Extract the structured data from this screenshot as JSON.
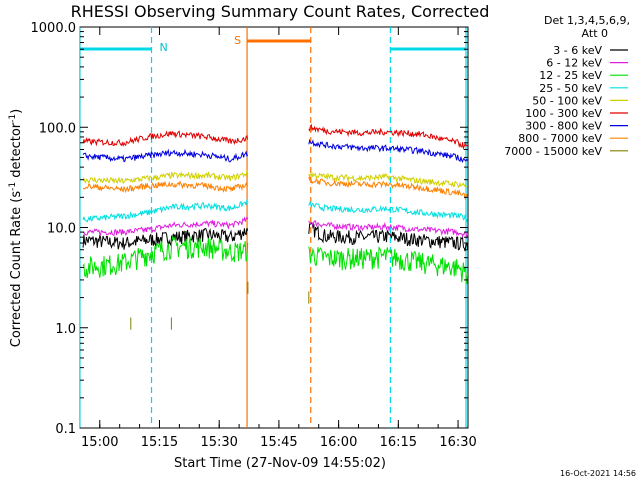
{
  "chart_data": {
    "type": "line",
    "title": "RHESSI Observing Summary Count Rates, Corrected",
    "xlabel": "Start Time (27-Nov-09 14:55:02)",
    "ylabel_main": "Corrected Count Rate (s",
    "ylabel_sup1": "-1",
    "ylabel_mid": " detector",
    "ylabel_sup2": "-1",
    "ylabel_end": ")",
    "yscale": "log",
    "ylim": [
      0.1,
      1000.0
    ],
    "xlim": [
      "14:55:02",
      "16:32:30"
    ],
    "x_ticks": [
      "15:00",
      "15:15",
      "15:30",
      "15:45",
      "16:00",
      "16:15",
      "16:30"
    ],
    "y_ticks": [
      "0.1",
      "1.0",
      "10.0",
      "100.0",
      "1000.0"
    ],
    "legend_header": [
      "Det 1,3,4,5,6,9,",
      "Att 0"
    ],
    "legend_position": "right",
    "annotations": {
      "night_label": "N",
      "saa_label": "S",
      "night_windows": [
        [
          "14:55",
          "15:13"
        ],
        [
          "16:13",
          "16:32"
        ]
      ],
      "saa_window": [
        "15:37",
        "15:53"
      ]
    },
    "timestamp": "16-Oct-2021 14:56",
    "series": [
      {
        "name": "3 - 6 keV",
        "color": "#000000",
        "values": [
          [
            14.93,
            7.5
          ],
          [
            15.1,
            7.0
          ],
          [
            15.2,
            7.5
          ],
          [
            15.3,
            8.0
          ],
          [
            15.45,
            8.5
          ],
          [
            15.55,
            8.0
          ],
          [
            15.62,
            9.5
          ],
          [
            15.875,
            10.0
          ],
          [
            15.95,
            8.2
          ],
          [
            16.1,
            8.0
          ],
          [
            16.2,
            8.2
          ],
          [
            16.35,
            7.5
          ],
          [
            16.5,
            7.0
          ],
          [
            16.54,
            6.8
          ]
        ]
      },
      {
        "name": "6 - 12 keV",
        "color": "#e020e0",
        "values": [
          [
            14.93,
            9.0
          ],
          [
            15.1,
            9.0
          ],
          [
            15.2,
            9.5
          ],
          [
            15.3,
            10.5
          ],
          [
            15.45,
            11.0
          ],
          [
            15.55,
            10.5
          ],
          [
            15.62,
            12.0
          ],
          [
            15.875,
            11.5
          ],
          [
            15.95,
            10.5
          ],
          [
            16.1,
            10.0
          ],
          [
            16.2,
            10.2
          ],
          [
            16.35,
            9.5
          ],
          [
            16.5,
            9.0
          ],
          [
            16.54,
            8.5
          ]
        ]
      },
      {
        "name": "12 - 25 keV",
        "color": "#00e000",
        "values": [
          [
            14.93,
            4.0
          ],
          [
            15.1,
            4.5
          ],
          [
            15.2,
            5.5
          ],
          [
            15.3,
            6.5
          ],
          [
            15.45,
            6.5
          ],
          [
            15.55,
            5.8
          ],
          [
            15.62,
            6.0
          ],
          [
            15.875,
            5.5
          ],
          [
            15.95,
            5.0
          ],
          [
            16.1,
            5.0
          ],
          [
            16.2,
            5.2
          ],
          [
            16.35,
            4.5
          ],
          [
            16.5,
            4.0
          ],
          [
            16.54,
            3.5
          ]
        ]
      },
      {
        "name": "25 - 50 keV",
        "color": "#00e0e0",
        "values": [
          [
            14.93,
            12.0
          ],
          [
            15.1,
            13.0
          ],
          [
            15.2,
            14.0
          ],
          [
            15.3,
            16.0
          ],
          [
            15.45,
            16.5
          ],
          [
            15.55,
            15.5
          ],
          [
            15.62,
            18.0
          ],
          [
            15.875,
            17.0
          ],
          [
            15.95,
            15.5
          ],
          [
            16.1,
            15.0
          ],
          [
            16.2,
            15.5
          ],
          [
            16.35,
            14.0
          ],
          [
            16.5,
            13.0
          ],
          [
            16.54,
            12.5
          ]
        ]
      },
      {
        "name": "50 - 100 keV",
        "color": "#d0d000",
        "values": [
          [
            14.93,
            30.0
          ],
          [
            15.1,
            29.0
          ],
          [
            15.2,
            31.0
          ],
          [
            15.3,
            33.0
          ],
          [
            15.45,
            33.0
          ],
          [
            15.55,
            31.0
          ],
          [
            15.62,
            35.0
          ],
          [
            15.875,
            34.0
          ],
          [
            15.95,
            32.0
          ],
          [
            16.1,
            31.0
          ],
          [
            16.2,
            32.0
          ],
          [
            16.35,
            29.0
          ],
          [
            16.5,
            27.0
          ],
          [
            16.54,
            26.0
          ]
        ]
      },
      {
        "name": "100 - 300 keV",
        "color": "#e00000",
        "values": [
          [
            14.93,
            72.0
          ],
          [
            15.1,
            70.0
          ],
          [
            15.2,
            80.0
          ],
          [
            15.3,
            87.0
          ],
          [
            15.45,
            80.0
          ],
          [
            15.55,
            72.0
          ],
          [
            15.62,
            78.0
          ],
          [
            15.875,
            100.0
          ],
          [
            15.95,
            92.0
          ],
          [
            16.1,
            88.0
          ],
          [
            16.2,
            90.0
          ],
          [
            16.35,
            85.0
          ],
          [
            16.5,
            70.0
          ],
          [
            16.54,
            63.0
          ]
        ]
      },
      {
        "name": "300 - 800 keV",
        "color": "#0000e0",
        "values": [
          [
            14.93,
            52.0
          ],
          [
            15.1,
            48.0
          ],
          [
            15.2,
            52.0
          ],
          [
            15.3,
            56.0
          ],
          [
            15.45,
            53.0
          ],
          [
            15.55,
            48.0
          ],
          [
            15.62,
            55.0
          ],
          [
            15.875,
            72.0
          ],
          [
            15.95,
            66.0
          ],
          [
            16.1,
            62.0
          ],
          [
            16.2,
            62.0
          ],
          [
            16.35,
            58.0
          ],
          [
            16.5,
            50.0
          ],
          [
            16.54,
            45.0
          ]
        ]
      },
      {
        "name": "800 - 7000 keV",
        "color": "#ff8000",
        "values": [
          [
            14.93,
            26.0
          ],
          [
            15.1,
            24.0
          ],
          [
            15.2,
            26.0
          ],
          [
            15.3,
            27.0
          ],
          [
            15.45,
            26.0
          ],
          [
            15.55,
            24.0
          ],
          [
            15.62,
            27.0
          ],
          [
            15.875,
            30.0
          ],
          [
            15.95,
            28.0
          ],
          [
            16.1,
            27.0
          ],
          [
            16.2,
            27.0
          ],
          [
            16.35,
            25.0
          ],
          [
            16.5,
            22.0
          ],
          [
            16.54,
            20.0
          ]
        ]
      },
      {
        "name": "7000 - 15000 keV",
        "color": "#808000",
        "values": [
          [
            15.13,
            1.1
          ],
          [
            15.3,
            1.1
          ],
          [
            15.62,
            2.5
          ],
          [
            15.875,
            2.0
          ]
        ]
      }
    ]
  }
}
